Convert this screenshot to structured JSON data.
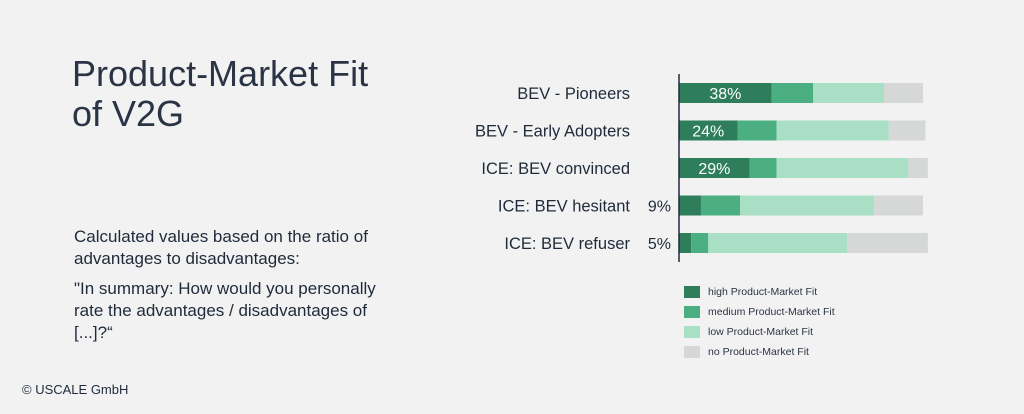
{
  "title_line1": "Product-Market Fit",
  "title_line2": "of V2G",
  "description": "Calculated values based on the ratio of advantages to disadvantages:",
  "quote": "\"In summary: How would you personally rate the advantages / disadvantages of [...]?“",
  "copyright": "© USCALE GmbH",
  "colors": {
    "high": "#2e7d5b",
    "medium": "#4caf82",
    "low": "#a8dfc5",
    "none": "#d6d8d8"
  },
  "legend": {
    "high": "high Product-Market Fit",
    "medium": "medium Product-Market Fit",
    "low": "low Product-Market Fit",
    "none": "no Product-Market Fit"
  },
  "chart_data": {
    "type": "bar",
    "orientation": "horizontal",
    "stacked": true,
    "categories": [
      "BEV - Pioneers",
      "BEV - Early Adopters",
      "ICE: BEV convinced",
      "ICE: BEV hesitant",
      "ICE: BEV refuser"
    ],
    "labels": [
      "38%",
      "24%",
      "29%",
      "9%",
      "5%"
    ],
    "series": [
      {
        "name": "high Product-Market Fit",
        "values": [
          38,
          24,
          29,
          9,
          5
        ]
      },
      {
        "name": "medium Product-Market Fit",
        "values": [
          17,
          16,
          11,
          16,
          7
        ]
      },
      {
        "name": "low Product-Market Fit",
        "values": [
          29,
          46,
          54,
          55,
          57
        ]
      },
      {
        "name": "no Product-Market Fit",
        "values": [
          16,
          15,
          8,
          20,
          33
        ]
      }
    ],
    "xlim": [
      0,
      100
    ],
    "legend_position": "bottom-right"
  }
}
